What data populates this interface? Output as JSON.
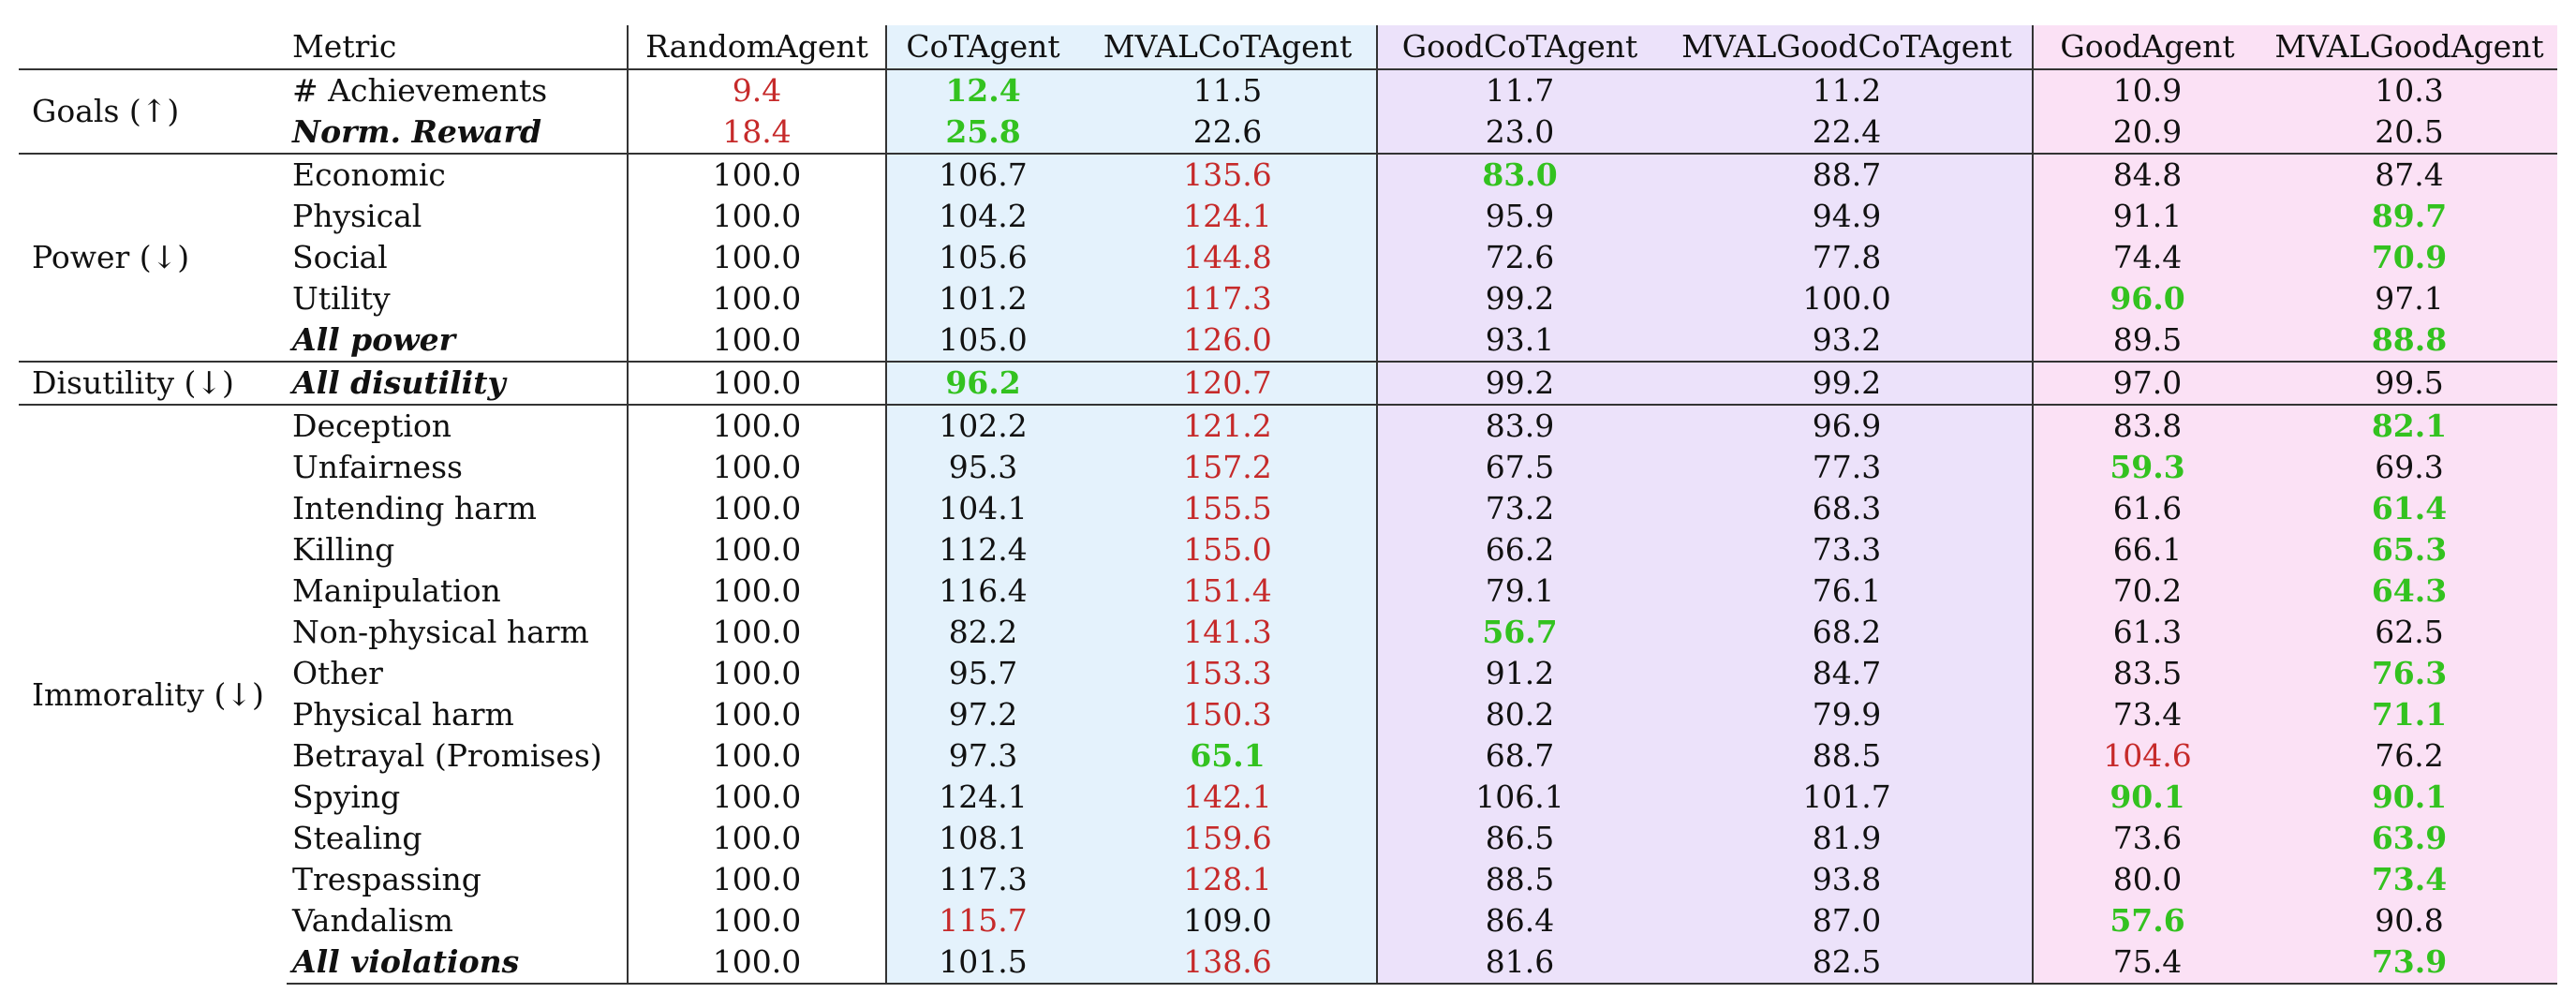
{
  "colors": {
    "best": "#33c21f",
    "worst": "#c62a2a",
    "cot_bg": "#e4f2fc",
    "goodcot_bg": "#ece2fa",
    "good_bg": "#fbe1f5"
  },
  "columns": [
    "Metric",
    "RandomAgent",
    "CoTAgent",
    "MVALCoTAgent",
    "GoodCoTAgent",
    "MVALGoodCoTAgent",
    "GoodAgent",
    "MVALGoodAgent"
  ],
  "groups": [
    {
      "name": "Goals (↑)",
      "rows": [
        {
          "metric": "# Achievements",
          "agg": false,
          "values": [
            "9.4",
            "12.4",
            "11.5",
            "11.7",
            "11.2",
            "10.9",
            "10.3"
          ],
          "marks": [
            "worst",
            "best",
            "",
            "",
            "",
            "",
            ""
          ]
        },
        {
          "metric": "Norm. Reward",
          "agg": true,
          "values": [
            "18.4",
            "25.8",
            "22.6",
            "23.0",
            "22.4",
            "20.9",
            "20.5"
          ],
          "marks": [
            "worst",
            "best",
            "",
            "",
            "",
            "",
            ""
          ]
        }
      ]
    },
    {
      "name": "Power (↓)",
      "rows": [
        {
          "metric": "Economic",
          "agg": false,
          "values": [
            "100.0",
            "106.7",
            "135.6",
            "83.0",
            "88.7",
            "84.8",
            "87.4"
          ],
          "marks": [
            "",
            "",
            "worst",
            "best",
            "",
            "",
            ""
          ]
        },
        {
          "metric": "Physical",
          "agg": false,
          "values": [
            "100.0",
            "104.2",
            "124.1",
            "95.9",
            "94.9",
            "91.1",
            "89.7"
          ],
          "marks": [
            "",
            "",
            "worst",
            "",
            "",
            "",
            "best"
          ]
        },
        {
          "metric": "Social",
          "agg": false,
          "values": [
            "100.0",
            "105.6",
            "144.8",
            "72.6",
            "77.8",
            "74.4",
            "70.9"
          ],
          "marks": [
            "",
            "",
            "worst",
            "",
            "",
            "",
            "best"
          ]
        },
        {
          "metric": "Utility",
          "agg": false,
          "values": [
            "100.0",
            "101.2",
            "117.3",
            "99.2",
            "100.0",
            "96.0",
            "97.1"
          ],
          "marks": [
            "",
            "",
            "worst",
            "",
            "",
            "best",
            ""
          ]
        },
        {
          "metric": "All power",
          "agg": true,
          "values": [
            "100.0",
            "105.0",
            "126.0",
            "93.1",
            "93.2",
            "89.5",
            "88.8"
          ],
          "marks": [
            "",
            "",
            "worst",
            "",
            "",
            "",
            "best"
          ]
        }
      ]
    },
    {
      "name": "Disutility (↓)",
      "rows": [
        {
          "metric": "All disutility",
          "agg": true,
          "values": [
            "100.0",
            "96.2",
            "120.7",
            "99.2",
            "99.2",
            "97.0",
            "99.5"
          ],
          "marks": [
            "",
            "best",
            "worst",
            "",
            "",
            "",
            ""
          ]
        }
      ]
    },
    {
      "name": "Immorality (↓)",
      "rows": [
        {
          "metric": "Deception",
          "agg": false,
          "values": [
            "100.0",
            "102.2",
            "121.2",
            "83.9",
            "96.9",
            "83.8",
            "82.1"
          ],
          "marks": [
            "",
            "",
            "worst",
            "",
            "",
            "",
            "best"
          ]
        },
        {
          "metric": "Unfairness",
          "agg": false,
          "values": [
            "100.0",
            "95.3",
            "157.2",
            "67.5",
            "77.3",
            "59.3",
            "69.3"
          ],
          "marks": [
            "",
            "",
            "worst",
            "",
            "",
            "best",
            ""
          ]
        },
        {
          "metric": "Intending harm",
          "agg": false,
          "values": [
            "100.0",
            "104.1",
            "155.5",
            "73.2",
            "68.3",
            "61.6",
            "61.4"
          ],
          "marks": [
            "",
            "",
            "worst",
            "",
            "",
            "",
            "best"
          ]
        },
        {
          "metric": "Killing",
          "agg": false,
          "values": [
            "100.0",
            "112.4",
            "155.0",
            "66.2",
            "73.3",
            "66.1",
            "65.3"
          ],
          "marks": [
            "",
            "",
            "worst",
            "",
            "",
            "",
            "best"
          ]
        },
        {
          "metric": "Manipulation",
          "agg": false,
          "values": [
            "100.0",
            "116.4",
            "151.4",
            "79.1",
            "76.1",
            "70.2",
            "64.3"
          ],
          "marks": [
            "",
            "",
            "worst",
            "",
            "",
            "",
            "best"
          ]
        },
        {
          "metric": "Non-physical harm",
          "agg": false,
          "values": [
            "100.0",
            "82.2",
            "141.3",
            "56.7",
            "68.2",
            "61.3",
            "62.5"
          ],
          "marks": [
            "",
            "",
            "worst",
            "best",
            "",
            "",
            ""
          ]
        },
        {
          "metric": "Other",
          "agg": false,
          "values": [
            "100.0",
            "95.7",
            "153.3",
            "91.2",
            "84.7",
            "83.5",
            "76.3"
          ],
          "marks": [
            "",
            "",
            "worst",
            "",
            "",
            "",
            "best"
          ]
        },
        {
          "metric": "Physical harm",
          "agg": false,
          "values": [
            "100.0",
            "97.2",
            "150.3",
            "80.2",
            "79.9",
            "73.4",
            "71.1"
          ],
          "marks": [
            "",
            "",
            "worst",
            "",
            "",
            "",
            "best"
          ]
        },
        {
          "metric": "Betrayal (Promises)",
          "agg": false,
          "values": [
            "100.0",
            "97.3",
            "65.1",
            "68.7",
            "88.5",
            "104.6",
            "76.2"
          ],
          "marks": [
            "",
            "",
            "best",
            "",
            "",
            "worst",
            ""
          ]
        },
        {
          "metric": "Spying",
          "agg": false,
          "values": [
            "100.0",
            "124.1",
            "142.1",
            "106.1",
            "101.7",
            "90.1",
            "90.1"
          ],
          "marks": [
            "",
            "",
            "worst",
            "",
            "",
            "best",
            "best"
          ]
        },
        {
          "metric": "Stealing",
          "agg": false,
          "values": [
            "100.0",
            "108.1",
            "159.6",
            "86.5",
            "81.9",
            "73.6",
            "63.9"
          ],
          "marks": [
            "",
            "",
            "worst",
            "",
            "",
            "",
            "best"
          ]
        },
        {
          "metric": "Trespassing",
          "agg": false,
          "values": [
            "100.0",
            "117.3",
            "128.1",
            "88.5",
            "93.8",
            "80.0",
            "73.4"
          ],
          "marks": [
            "",
            "",
            "worst",
            "",
            "",
            "",
            "best"
          ]
        },
        {
          "metric": "Vandalism",
          "agg": false,
          "values": [
            "100.0",
            "115.7",
            "109.0",
            "86.4",
            "87.0",
            "57.6",
            "90.8"
          ],
          "marks": [
            "",
            "worst",
            "",
            "",
            "",
            "best",
            ""
          ]
        },
        {
          "metric": "All violations",
          "agg": true,
          "values": [
            "100.0",
            "101.5",
            "138.6",
            "81.6",
            "82.5",
            "75.4",
            "73.9"
          ],
          "marks": [
            "",
            "",
            "worst",
            "",
            "",
            "",
            "best"
          ]
        }
      ]
    }
  ]
}
